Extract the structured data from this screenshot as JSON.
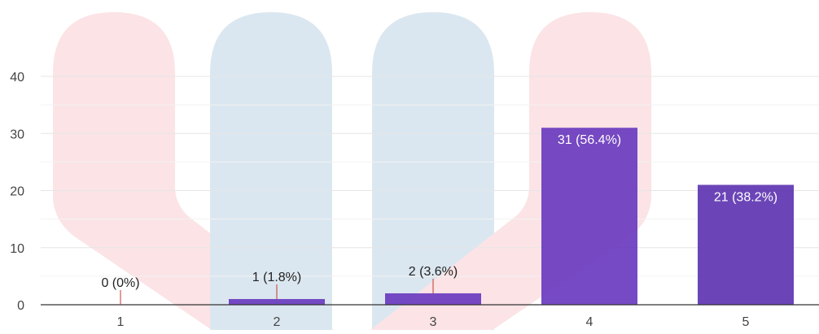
{
  "chart_data": {
    "type": "bar",
    "categories": [
      "1",
      "2",
      "3",
      "4",
      "5"
    ],
    "values": [
      0,
      1,
      2,
      31,
      21
    ],
    "labels": [
      "0 (0%)",
      "1 (1.8%)",
      "2 (3.6%)",
      "31 (56.4%)",
      "21 (38.2%)"
    ],
    "y_ticks": [
      0,
      10,
      20,
      30,
      40
    ],
    "ylim": [
      0,
      40
    ],
    "title": "",
    "xlabel": "",
    "ylabel": "",
    "grid": true,
    "colors": {
      "bar": "#6a3bbf",
      "bar_alt": "#5e35b1",
      "axis": "#333333",
      "grid": "#e6e6e6",
      "tick_text": "#444444",
      "label_text_dark": "#222222",
      "label_text_light": "#ffffff",
      "watermark_red": "#fbe3e6",
      "watermark_blue": "#dbe7f0"
    }
  }
}
